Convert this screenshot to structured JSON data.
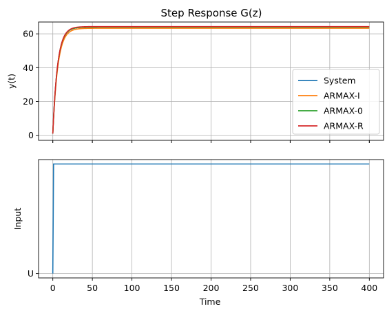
{
  "figure": {
    "title": "Step Response G(z)",
    "x_label": "Time"
  },
  "chart_data": [
    {
      "type": "line",
      "title": "Step Response G(z)",
      "xlabel": "",
      "ylabel": "y(t)",
      "xlim": [
        -18,
        418
      ],
      "ylim": [
        -3,
        67
      ],
      "x_ticks": [
        0,
        50,
        100,
        150,
        200,
        250,
        300,
        350,
        400
      ],
      "y_ticks": [
        0,
        20,
        40,
        60
      ],
      "grid": true,
      "legend_position": "center-right",
      "series": [
        {
          "name": "System",
          "color": "#1f77b4",
          "final_value": 64,
          "tau": 6,
          "y0": 1,
          "x_end": 400
        },
        {
          "name": "ARMAX-I",
          "color": "#ff7f0e",
          "final_value": 63.3,
          "tau": 6.3,
          "y0": 1,
          "x_end": 400
        },
        {
          "name": "ARMAX-0",
          "color": "#2ca02c",
          "final_value": 64,
          "tau": 6,
          "y0": 1,
          "x_end": 400
        },
        {
          "name": "ARMAX-R",
          "color": "#d62728",
          "final_value": 64.3,
          "tau": 6,
          "y0": 1,
          "x_end": 400
        }
      ]
    },
    {
      "type": "line",
      "title": "",
      "xlabel": "Time",
      "ylabel": "Input",
      "xlim": [
        -18,
        418
      ],
      "ylim": [
        -0.04,
        1.04
      ],
      "x_ticks": [
        0,
        50,
        100,
        150,
        200,
        250,
        300,
        350,
        400
      ],
      "y_ticks": [
        {
          "value": 0,
          "label": "U"
        }
      ],
      "grid": true,
      "series": [
        {
          "name": "",
          "color": "#1f77b4",
          "x": [
            0,
            1,
            400
          ],
          "y": [
            0,
            1,
            1
          ]
        }
      ]
    }
  ]
}
